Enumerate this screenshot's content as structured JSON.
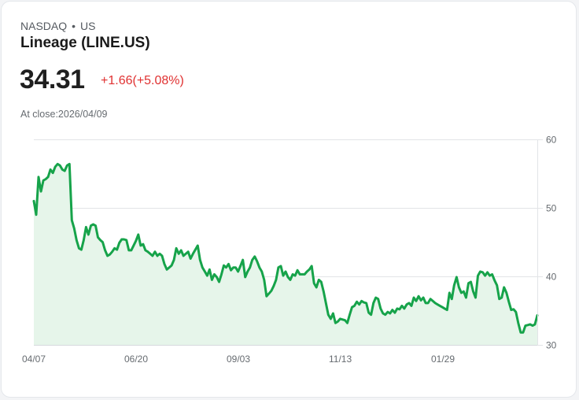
{
  "header": {
    "exchange": "NASDAQ",
    "separator": "•",
    "region": "US",
    "title": "Lineage (LINE.US)",
    "price": "34.31",
    "change": "+1.66(+5.08%)",
    "as_of": "At close:2026/04/09"
  },
  "colors": {
    "line": "#16a34a",
    "fill": "#e6f5ea",
    "change_text": "#e03131",
    "grid": "#e2e4e7"
  },
  "chart_data": {
    "type": "line",
    "title": "Lineage (LINE.US)",
    "xlabel": "",
    "ylabel": "",
    "ylim": [
      30,
      60
    ],
    "yticks": [
      60,
      50,
      40,
      30
    ],
    "xticks": [
      "04/07",
      "06/20",
      "09/03",
      "11/13",
      "01/29"
    ],
    "grid": true,
    "legend": "none",
    "series": [
      {
        "name": "LINE.US close",
        "x_start": "04/07",
        "x_end": "04/09",
        "values": [
          51.0,
          49.0,
          54.5,
          52.4,
          54.0,
          54.2,
          54.5,
          55.6,
          55.1,
          56.0,
          56.4,
          56.2,
          55.6,
          55.4,
          56.2,
          56.4,
          48.2,
          47.0,
          45.3,
          44.1,
          43.9,
          45.3,
          47.2,
          46.1,
          47.4,
          47.6,
          47.4,
          45.7,
          45.3,
          45.0,
          43.8,
          43.0,
          43.2,
          43.6,
          44.1,
          43.9,
          44.9,
          45.4,
          45.4,
          45.3,
          43.8,
          43.8,
          44.5,
          45.2,
          46.1,
          44.5,
          44.7,
          43.8,
          43.6,
          43.3,
          43.0,
          43.6,
          43.0,
          43.3,
          43.0,
          41.8,
          41.0,
          41.3,
          41.6,
          42.4,
          44.1,
          43.3,
          43.8,
          43.0,
          43.3,
          43.6,
          42.6,
          43.3,
          43.9,
          44.5,
          42.4,
          41.3,
          40.7,
          40.1,
          41.0,
          39.5,
          40.3,
          39.9,
          39.2,
          40.3,
          41.6,
          41.3,
          41.8,
          40.9,
          41.3,
          41.3,
          40.7,
          41.5,
          42.4,
          39.9,
          40.7,
          41.3,
          42.4,
          42.9,
          42.2,
          41.3,
          40.7,
          39.5,
          37.1,
          37.5,
          37.9,
          38.6,
          39.5,
          41.3,
          41.5,
          40.1,
          40.7,
          39.9,
          39.5,
          40.3,
          40.1,
          40.9,
          40.3,
          40.3,
          40.3,
          40.7,
          41.0,
          41.5,
          39.0,
          38.4,
          39.5,
          39.2,
          37.8,
          36.1,
          34.4,
          33.8,
          34.6,
          33.2,
          33.4,
          33.8,
          33.7,
          33.6,
          33.2,
          34.4,
          35.5,
          35.7,
          36.3,
          35.9,
          36.4,
          36.2,
          36.1,
          34.7,
          34.4,
          36.1,
          36.9,
          36.7,
          35.3,
          34.6,
          34.4,
          34.8,
          34.6,
          35.1,
          34.7,
          35.3,
          35.2,
          35.7,
          35.3,
          35.9,
          36.1,
          35.7,
          36.9,
          36.4,
          37.1,
          36.5,
          36.9,
          36.1,
          36.1,
          36.7,
          36.4,
          36.1,
          35.9,
          35.7,
          35.5,
          35.3,
          35.1,
          37.6,
          36.7,
          38.7,
          39.9,
          38.4,
          37.6,
          37.8,
          36.9,
          39.0,
          39.2,
          37.8,
          36.9,
          40.1,
          40.7,
          40.6,
          40.1,
          40.6,
          40.1,
          40.3,
          39.4,
          38.7,
          36.7,
          36.9,
          38.4,
          37.6,
          36.3,
          35.1,
          35.2,
          34.8,
          33.2,
          31.8,
          31.8,
          32.8,
          32.9,
          33.0,
          32.8,
          33.0,
          34.31
        ]
      }
    ]
  }
}
